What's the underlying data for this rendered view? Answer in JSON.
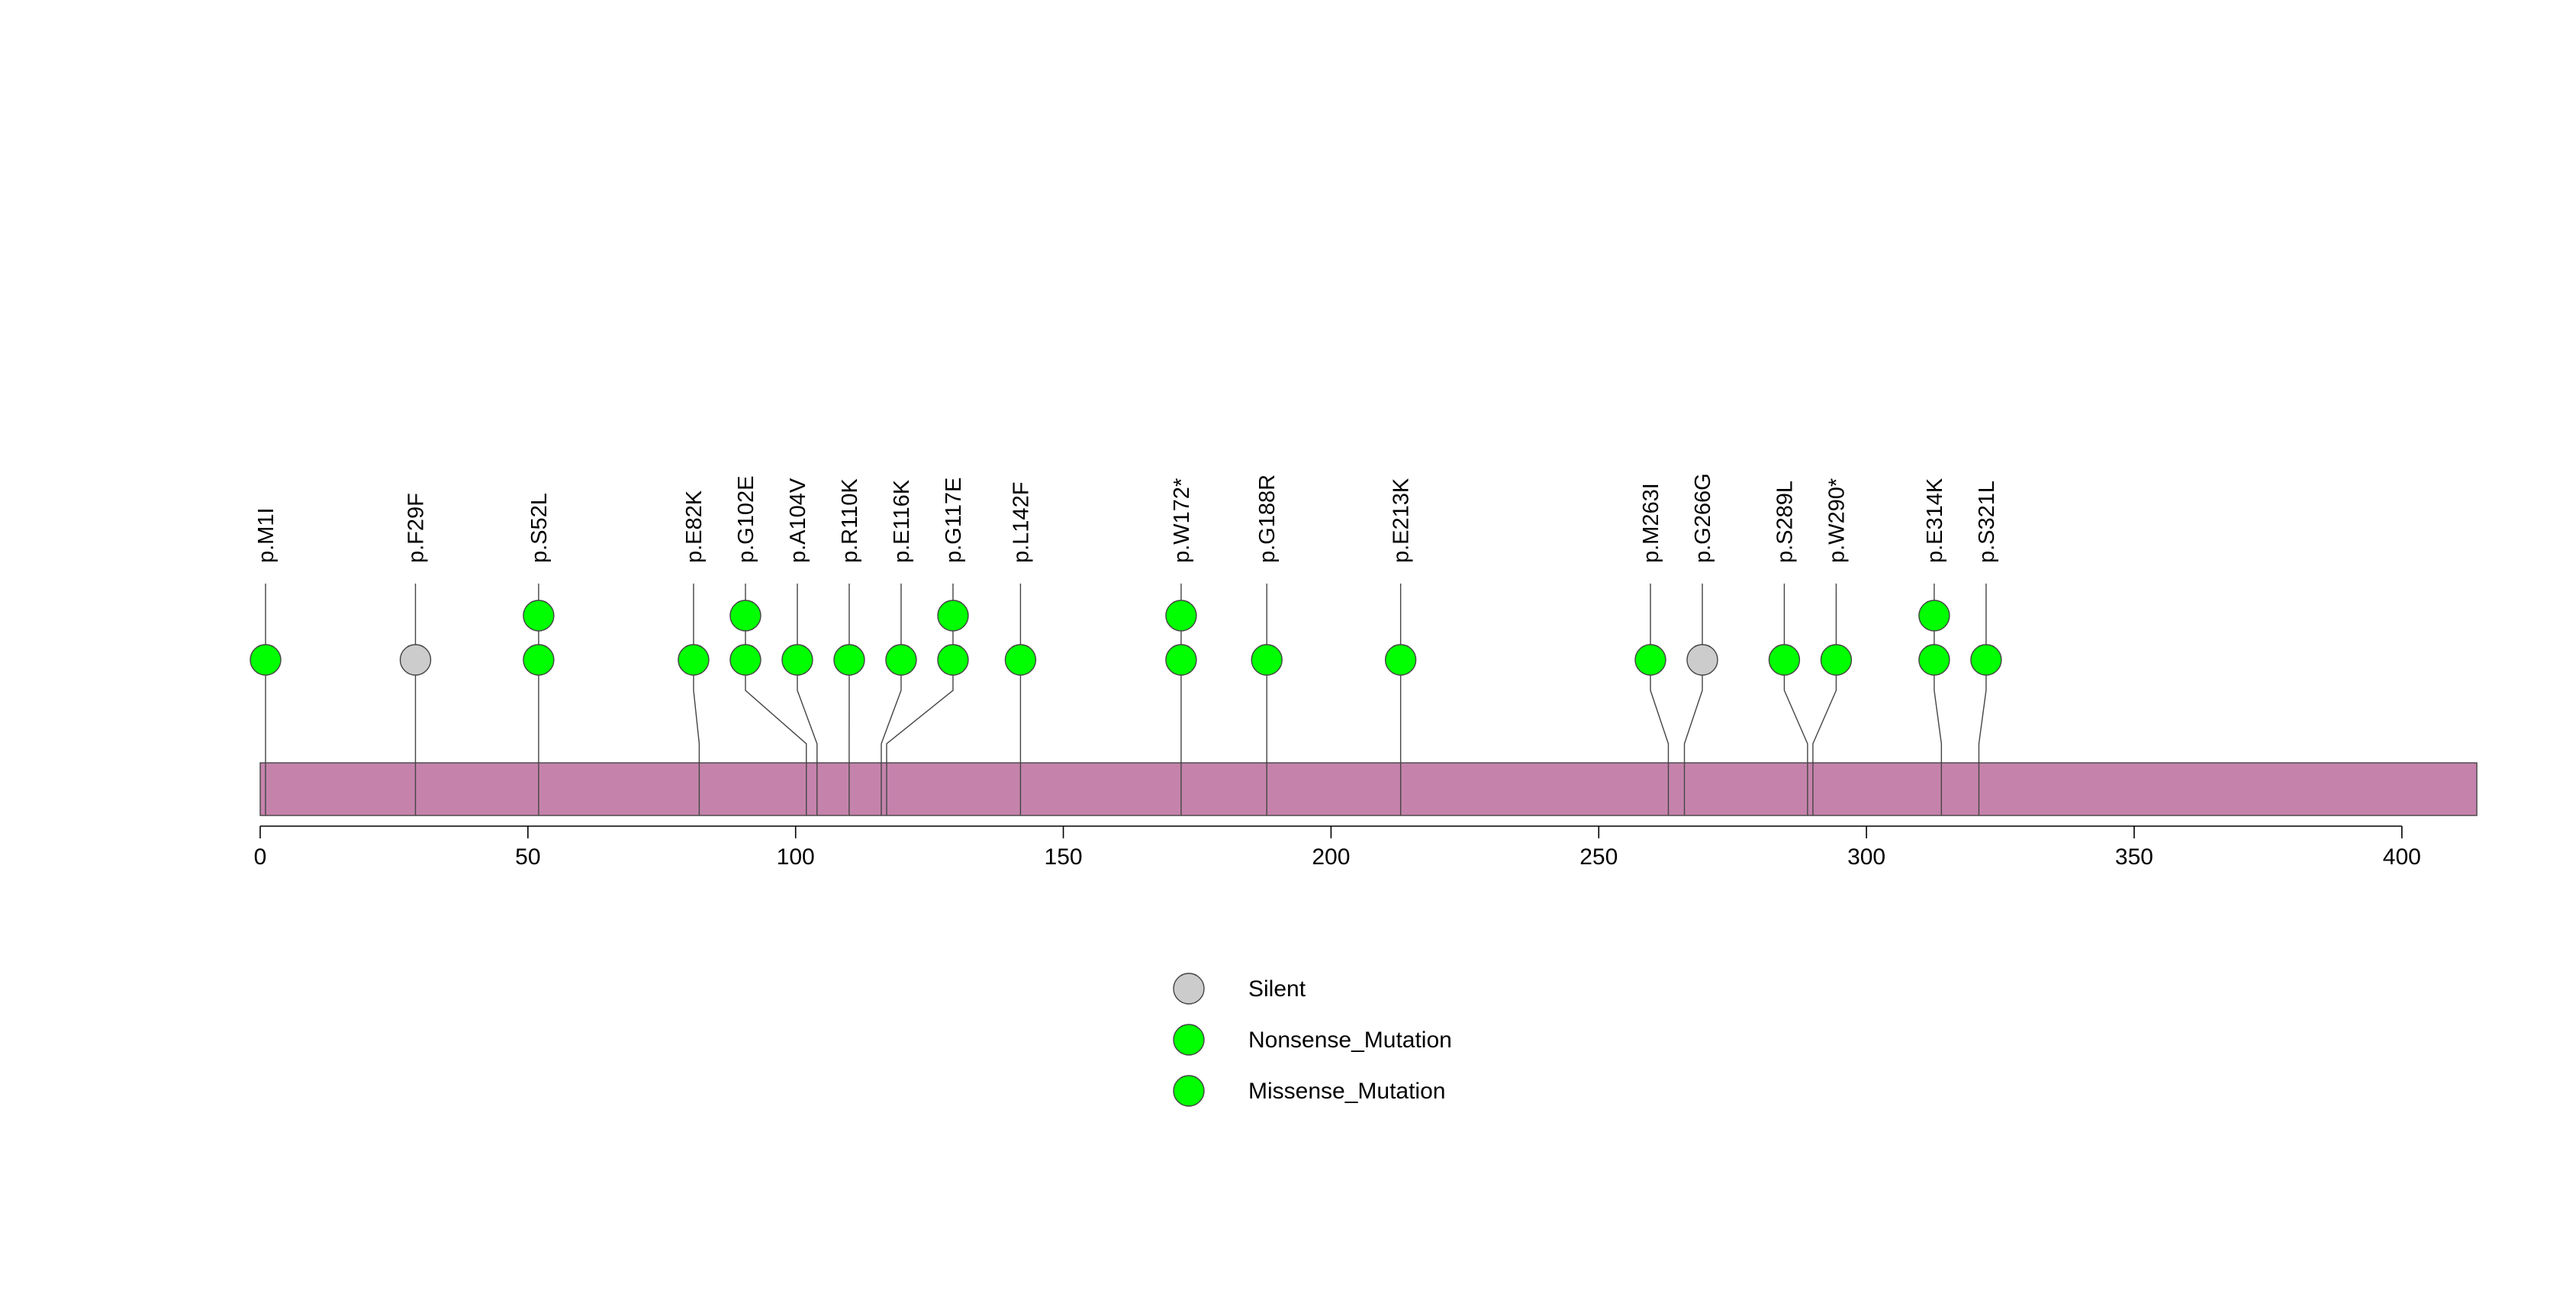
{
  "chart_data": {
    "type": "lollipop",
    "title": "",
    "xlabel": "",
    "ylabel": "",
    "xlim": [
      0,
      414
    ],
    "x_ticks": [
      0,
      50,
      100,
      150,
      200,
      250,
      300,
      350,
      400
    ],
    "protein_length": 414,
    "colors": {
      "protein_bar": "#c583ac",
      "Silent": "#cccccc",
      "Nonsense_Mutation": "#00ff00",
      "Missense_Mutation": "#00ff00",
      "stroke": "#444444"
    },
    "legend": {
      "placement": "bottom-center",
      "entries": [
        "Silent",
        "Nonsense_Mutation",
        "Missense_Mutation"
      ]
    },
    "mutations": [
      {
        "label": "p.M1I",
        "position": 1,
        "count": 1,
        "type": "Missense_Mutation"
      },
      {
        "label": "p.F29F",
        "position": 29,
        "count": 1,
        "type": "Silent"
      },
      {
        "label": "p.S52L",
        "position": 52,
        "count": 2,
        "type": "Missense_Mutation"
      },
      {
        "label": "p.E82K",
        "position": 82,
        "count": 1,
        "type": "Missense_Mutation"
      },
      {
        "label": "p.G102E",
        "position": 102,
        "count": 2,
        "type": "Missense_Mutation"
      },
      {
        "label": "p.A104V",
        "position": 104,
        "count": 1,
        "type": "Missense_Mutation"
      },
      {
        "label": "p.R110K",
        "position": 110,
        "count": 1,
        "type": "Missense_Mutation"
      },
      {
        "label": "p.E116K",
        "position": 116,
        "count": 1,
        "type": "Missense_Mutation"
      },
      {
        "label": "p.G117E",
        "position": 117,
        "count": 2,
        "type": "Missense_Mutation"
      },
      {
        "label": "p.L142F",
        "position": 142,
        "count": 1,
        "type": "Missense_Mutation"
      },
      {
        "label": "p.W172*",
        "position": 172,
        "count": 2,
        "type": "Nonsense_Mutation"
      },
      {
        "label": "p.G188R",
        "position": 188,
        "count": 1,
        "type": "Missense_Mutation"
      },
      {
        "label": "p.E213K",
        "position": 213,
        "count": 1,
        "type": "Missense_Mutation"
      },
      {
        "label": "p.M263I",
        "position": 263,
        "count": 1,
        "type": "Missense_Mutation"
      },
      {
        "label": "p.G266G",
        "position": 266,
        "count": 1,
        "type": "Silent"
      },
      {
        "label": "p.S289L",
        "position": 289,
        "count": 1,
        "type": "Missense_Mutation"
      },
      {
        "label": "p.W290*",
        "position": 290,
        "count": 1,
        "type": "Nonsense_Mutation"
      },
      {
        "label": "p.E314K",
        "position": 314,
        "count": 2,
        "type": "Missense_Mutation"
      },
      {
        "label": "p.S321L",
        "position": 321,
        "count": 1,
        "type": "Missense_Mutation"
      }
    ]
  }
}
